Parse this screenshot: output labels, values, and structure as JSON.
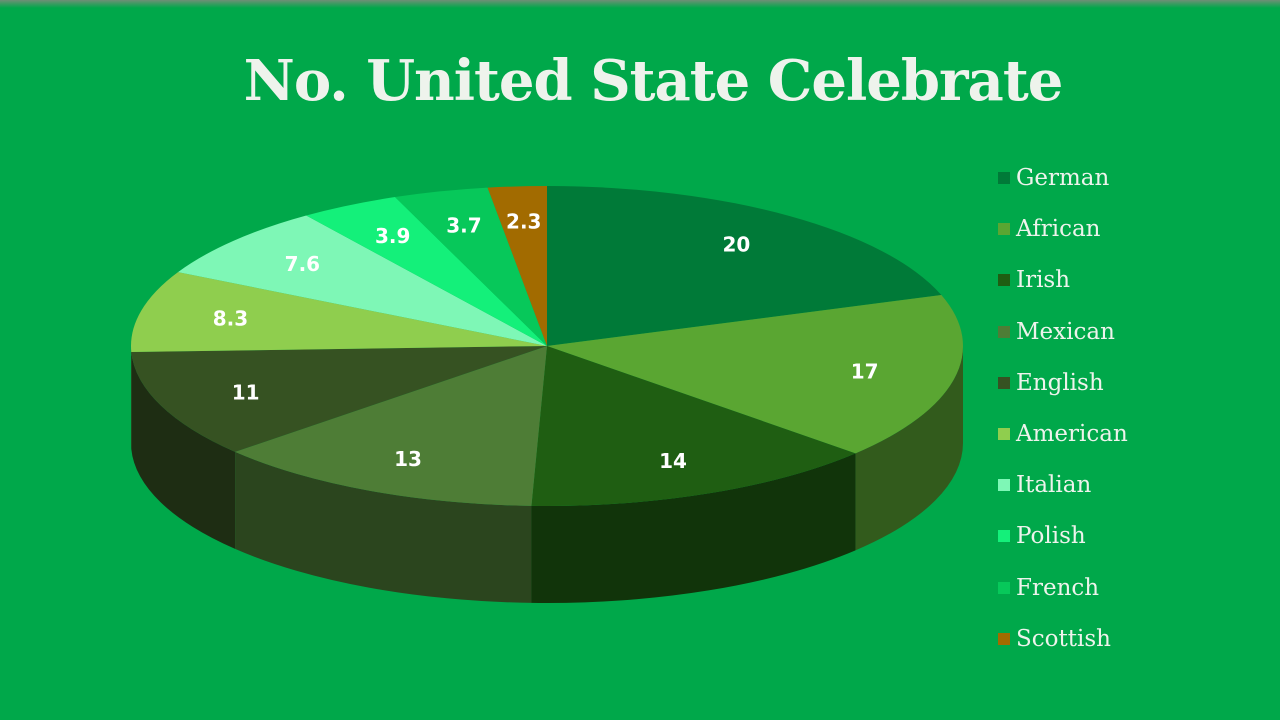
{
  "chart_data": {
    "type": "pie",
    "title": "No. United State Celebrate",
    "categories": [
      "German",
      "African",
      "Irish",
      "Mexican",
      "English",
      "American",
      "Italian",
      "Polish",
      "French",
      "Scottish"
    ],
    "values": [
      20,
      17,
      14,
      13,
      11,
      8.3,
      7.6,
      3.9,
      3.7,
      2.3
    ],
    "labels": [
      "20",
      "17",
      "14",
      "13",
      "11",
      "8.3",
      "7.6",
      "3.9",
      "3.7",
      "2.3"
    ],
    "colors": [
      "#007a38",
      "#5aa632",
      "#1f5e12",
      "#4e7d36",
      "#365222",
      "#8fce4e",
      "#7ef7b6",
      "#14f07a",
      "#07c85a",
      "#a26b00"
    ],
    "legend_placement": "right",
    "style": "3d"
  }
}
